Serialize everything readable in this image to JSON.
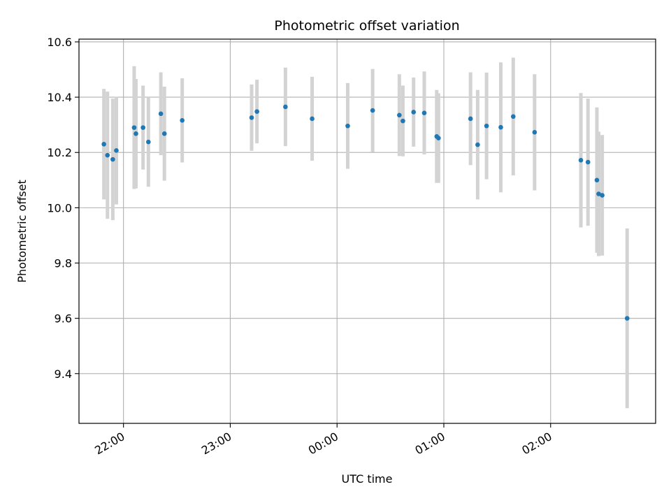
{
  "chart_data": {
    "type": "scatter",
    "title": "Photometric offset variation",
    "xlabel": "UTC time",
    "ylabel": "Photometric offset",
    "xlim": [
      "21:35",
      "02:59"
    ],
    "ylim": [
      9.22,
      10.61
    ],
    "xticks": [
      "22:00",
      "23:00",
      "00:00",
      "01:00",
      "02:00"
    ],
    "yticks": [
      "9.4",
      "9.6",
      "9.8",
      "10.0",
      "10.2",
      "10.4",
      "10.6"
    ],
    "grid": true,
    "series": [
      {
        "marker_color": "#1f77b4",
        "errorbar_color": "#d3d3d3",
        "points": [
          {
            "t": "21:49",
            "y": 10.23,
            "err": 0.2
          },
          {
            "t": "21:51",
            "y": 10.19,
            "err": 0.23
          },
          {
            "t": "21:54",
            "y": 10.175,
            "err": 0.22
          },
          {
            "t": "21:56",
            "y": 10.207,
            "err": 0.195
          },
          {
            "t": "22:06",
            "y": 10.29,
            "err": 0.222
          },
          {
            "t": "22:07",
            "y": 10.268,
            "err": 0.198
          },
          {
            "t": "22:11",
            "y": 10.29,
            "err": 0.152
          },
          {
            "t": "22:14",
            "y": 10.238,
            "err": 0.162
          },
          {
            "t": "22:21",
            "y": 10.34,
            "err": 0.15
          },
          {
            "t": "22:23",
            "y": 10.268,
            "err": 0.17
          },
          {
            "t": "22:33",
            "y": 10.316,
            "err": 0.152
          },
          {
            "t": "23:12",
            "y": 10.326,
            "err": 0.12
          },
          {
            "t": "23:15",
            "y": 10.348,
            "err": 0.115
          },
          {
            "t": "23:31",
            "y": 10.365,
            "err": 0.142
          },
          {
            "t": "23:46",
            "y": 10.322,
            "err": 0.152
          },
          {
            "t": "00:06",
            "y": 10.296,
            "err": 0.155
          },
          {
            "t": "00:20",
            "y": 10.352,
            "err": 0.15
          },
          {
            "t": "00:35",
            "y": 10.335,
            "err": 0.148
          },
          {
            "t": "00:37",
            "y": 10.314,
            "err": 0.128
          },
          {
            "t": "00:43",
            "y": 10.346,
            "err": 0.125
          },
          {
            "t": "00:49",
            "y": 10.343,
            "err": 0.15
          },
          {
            "t": "00:56",
            "y": 10.258,
            "err": 0.168
          },
          {
            "t": "00:57",
            "y": 10.252,
            "err": 0.162
          },
          {
            "t": "01:15",
            "y": 10.322,
            "err": 0.168
          },
          {
            "t": "01:19",
            "y": 10.228,
            "err": 0.198
          },
          {
            "t": "01:24",
            "y": 10.296,
            "err": 0.193
          },
          {
            "t": "01:32",
            "y": 10.291,
            "err": 0.235
          },
          {
            "t": "01:39",
            "y": 10.33,
            "err": 0.213
          },
          {
            "t": "01:51",
            "y": 10.273,
            "err": 0.21
          },
          {
            "t": "02:17",
            "y": 10.172,
            "err": 0.243
          },
          {
            "t": "02:21",
            "y": 10.165,
            "err": 0.23
          },
          {
            "t": "02:26",
            "y": 10.1,
            "err": 0.263
          },
          {
            "t": "02:27",
            "y": 10.05,
            "err": 0.225
          },
          {
            "t": "02:29",
            "y": 10.045,
            "err": 0.218
          },
          {
            "t": "02:43",
            "y": 9.6,
            "err": 0.325
          }
        ]
      }
    ]
  }
}
